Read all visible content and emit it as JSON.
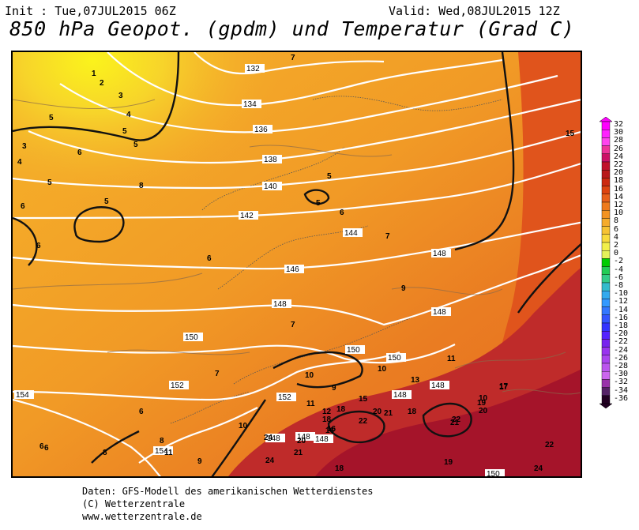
{
  "header": {
    "init": "Init : Tue,07JUL2015 06Z",
    "valid": "Valid: Wed,08JUL2015 12Z",
    "title": "850 hPa Geopot. (gpdm) und Temperatur (Grad C)"
  },
  "legend": {
    "values": [
      "32",
      "30",
      "28",
      "26",
      "24",
      "22",
      "20",
      "18",
      "16",
      "14",
      "12",
      "10",
      "8",
      "6",
      "4",
      "2",
      "0",
      "-2",
      "-4",
      "-6",
      "-8",
      "-10",
      "-12",
      "-14",
      "-16",
      "-18",
      "-20",
      "-22",
      "-24",
      "-26",
      "-28",
      "-30",
      "-32",
      "-34",
      "-36"
    ],
    "colors": [
      "#ff00ff",
      "#ff22ff",
      "#ff44ee",
      "#ee3399",
      "#cc1166",
      "#c0102a",
      "#b81a1a",
      "#cc2a10",
      "#dd4410",
      "#e8601a",
      "#ee7a1c",
      "#f29322",
      "#f5ab2c",
      "#f6c233",
      "#f8da3b",
      "#f2f04a",
      "#e4f25a",
      "#00cc00",
      "#22cc55",
      "#33cc88",
      "#33bbcc",
      "#33aaee",
      "#3399ff",
      "#3377ff",
      "#3355ff",
      "#3333ff",
      "#5522ff",
      "#7722ee",
      "#9933ee",
      "#aa44ee",
      "#bb55ee",
      "#cc66ee",
      "#9933aa",
      "#552266",
      "#220022"
    ]
  },
  "map": {
    "geopotential_contours": [
      "132",
      "134",
      "136",
      "138",
      "140",
      "142",
      "144",
      "146",
      "148",
      "150",
      "152",
      "154"
    ],
    "contour_labels": [
      "132",
      "134",
      "136",
      "138",
      "140",
      "142",
      "144",
      "146",
      "148",
      "148",
      "148",
      "150",
      "150",
      "150",
      "152",
      "152",
      "154",
      "154",
      "148",
      "148",
      "148",
      "148",
      "148",
      "150"
    ],
    "temperature_labels": [
      "1",
      "2",
      "3",
      "4",
      "5",
      "5",
      "5",
      "3",
      "4",
      "6",
      "5",
      "5",
      "6",
      "8",
      "5",
      "5",
      "6",
      "7",
      "7",
      "6",
      "9",
      "6",
      "7",
      "7",
      "6",
      "10",
      "10",
      "11",
      "10",
      "9",
      "12",
      "11",
      "13",
      "15",
      "17",
      "20",
      "21",
      "22",
      "18",
      "16",
      "19",
      "20",
      "17",
      "22",
      "21",
      "22",
      "6",
      "8",
      "8",
      "11",
      "9",
      "6",
      "10",
      "24",
      "20",
      "21",
      "18",
      "19",
      "18",
      "18",
      "16",
      "24",
      "15",
      "24"
    ],
    "colors": {
      "cold": "#f8ea20",
      "mid": "#f3a12a",
      "warm": "#e8731f",
      "hot": "#b8152a"
    }
  },
  "footer": {
    "line1": "Daten: GFS-Modell des amerikanischen Wetterdienstes",
    "line2": "(C) Wetterzentrale",
    "line3": "www.wetterzentrale.de"
  }
}
